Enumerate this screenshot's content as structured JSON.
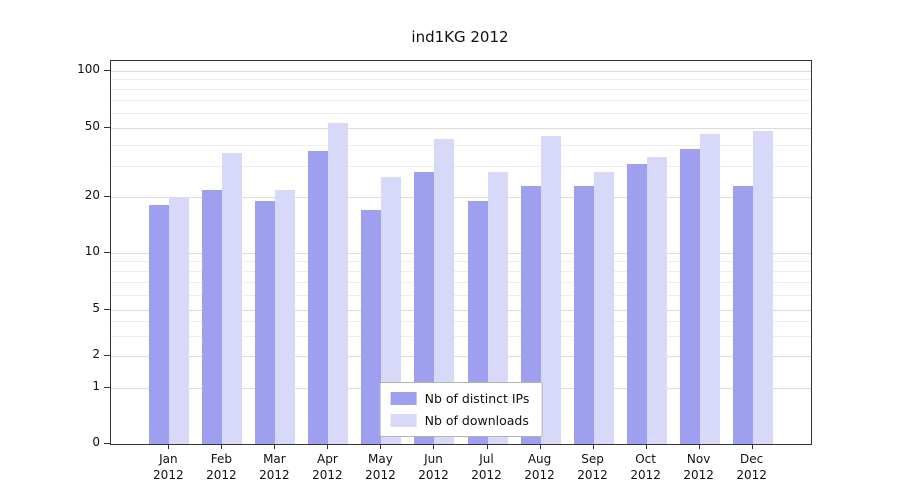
{
  "title": "ind1KG 2012",
  "chart_data": {
    "type": "bar",
    "title": "ind1KG 2012",
    "categories": [
      "Jan",
      "Feb",
      "Mar",
      "Apr",
      "May",
      "Jun",
      "Jul",
      "Aug",
      "Sep",
      "Oct",
      "Nov",
      "Dec"
    ],
    "year": "2012",
    "series": [
      {
        "name": "Nb of distinct IPs",
        "color": "#9f9ff0",
        "values": [
          18,
          22,
          19,
          37,
          17,
          28,
          19,
          23,
          23,
          31,
          38,
          23
        ]
      },
      {
        "name": "Nb of downloads",
        "color": "#d8d8f8",
        "values": [
          20,
          36,
          22,
          53,
          26,
          43,
          28,
          45,
          28,
          34,
          46,
          48
        ]
      }
    ],
    "yticks": [
      0,
      1,
      2,
      5,
      10,
      20,
      50,
      100
    ],
    "yscale": "log",
    "ylim": [
      0,
      100
    ],
    "grid": true,
    "legend_position": "lower center"
  }
}
